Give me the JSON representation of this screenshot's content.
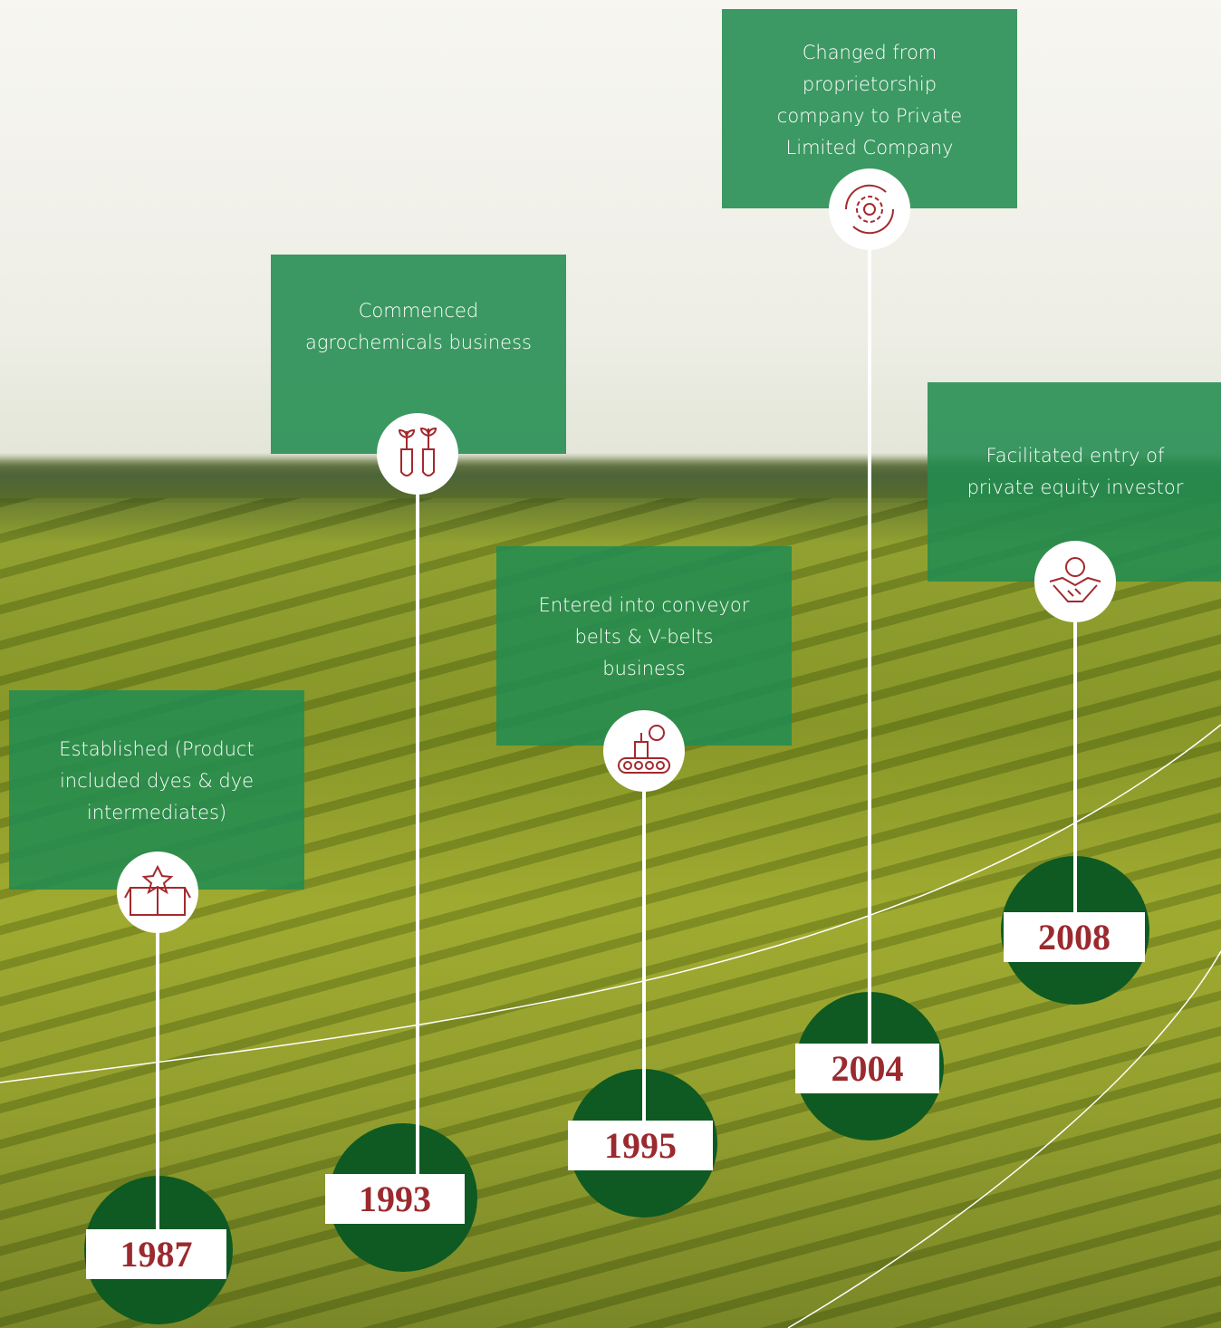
{
  "milestones": [
    {
      "year": "1987",
      "text": "Established (Product included dyes & dye intermediates)"
    },
    {
      "year": "1993",
      "text": "Commenced agrochemicals business"
    },
    {
      "year": "1995",
      "text": "Entered into conveyor belts & V-belts business"
    },
    {
      "year": "2004",
      "text": "Changed from proprietorship company to Private Limited Company"
    },
    {
      "year": "2008",
      "text": "Facilitated entry of private equity investor"
    }
  ]
}
